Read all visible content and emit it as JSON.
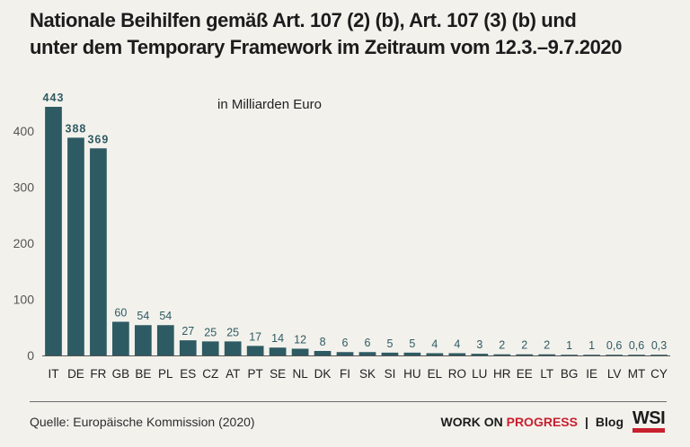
{
  "title": {
    "line1": "Nationale Beihilfen gemäß Art. 107 (2) (b), Art. 107 (3) (b) und",
    "line2": "unter dem Temporary Framework im Zeitraum vom 12.3.–9.7.2020"
  },
  "source": "Quelle: Europäische Kommission (2020)",
  "brand": {
    "work_on": "WORK ON",
    "progress": "PROGRESS",
    "separator": "|",
    "blog": "Blog",
    "logo": "WSI"
  },
  "colors": {
    "bar": "#2e5b63",
    "axis": "#555555",
    "brand_red": "#c8202f"
  },
  "chart_data": {
    "type": "bar",
    "unit_label": "in Milliarden Euro",
    "categories": [
      "IT",
      "DE",
      "FR",
      "GB",
      "BE",
      "PL",
      "ES",
      "CZ",
      "AT",
      "PT",
      "SE",
      "NL",
      "DK",
      "FI",
      "SK",
      "SI",
      "HU",
      "EL",
      "RO",
      "LU",
      "HR",
      "EE",
      "LT",
      "BG",
      "IE",
      "LV",
      "MT",
      "CY"
    ],
    "values": [
      443,
      388,
      369,
      60,
      54,
      54,
      27,
      25,
      25,
      17,
      14,
      12,
      8,
      6,
      6,
      5,
      5,
      4,
      4,
      3,
      2,
      2,
      2,
      1,
      1,
      0.6,
      0.6,
      0.3
    ],
    "value_labels": [
      "443",
      "388",
      "369",
      "60",
      "54",
      "54",
      "27",
      "25",
      "25",
      "17",
      "14",
      "12",
      "8",
      "6",
      "6",
      "5",
      "5",
      "4",
      "4",
      "3",
      "2",
      "2",
      "2",
      "1",
      "1",
      "0,6",
      "0,6",
      "0,3"
    ],
    "yticks": [
      0,
      100,
      200,
      300,
      400
    ],
    "ylim": [
      0,
      443
    ],
    "grid": false
  }
}
